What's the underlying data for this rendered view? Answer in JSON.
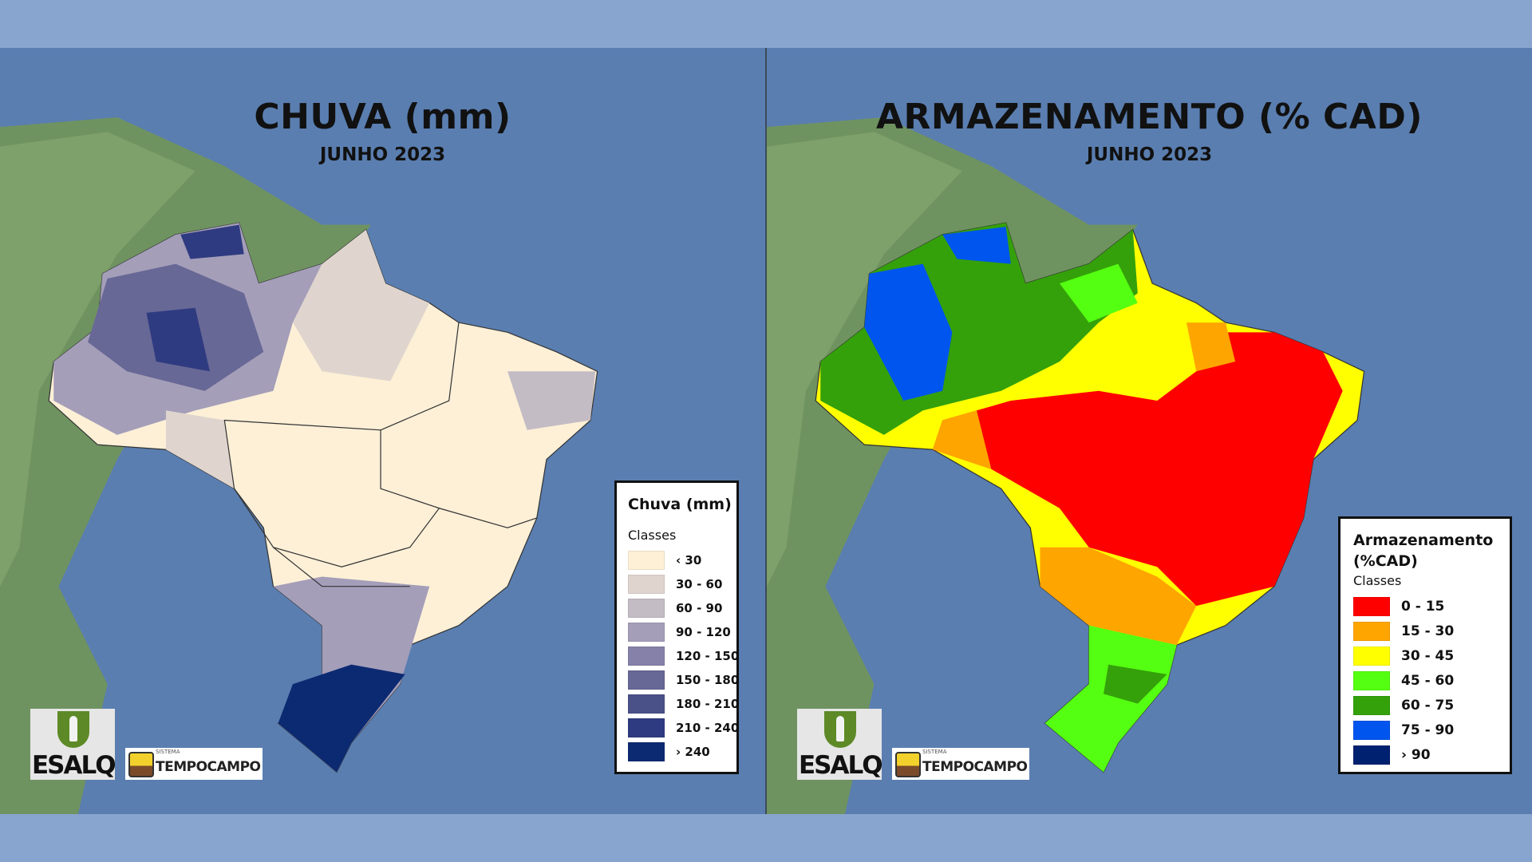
{
  "panels": [
    {
      "title": "CHUVA (mm)",
      "subtitle": "JUNHO 2023",
      "legend": {
        "title": "Chuva (mm)",
        "classes_label": "Classes",
        "classes": [
          {
            "label": "‹ 30",
            "color": "#fdf0d7"
          },
          {
            "label": "30 - 60",
            "color": "#dfd5ce"
          },
          {
            "label": "60 - 90",
            "color": "#c4bcc4"
          },
          {
            "label": "90 - 120",
            "color": "#a49eb9"
          },
          {
            "label": "120 - 150",
            "color": "#8581a8"
          },
          {
            "label": "150 - 180",
            "color": "#686896"
          },
          {
            "label": "180 - 210",
            "color": "#4a5088"
          },
          {
            "label": "210 - 240",
            "color": "#2f3b80"
          },
          {
            "label": "› 240",
            "color": "#0c2a72"
          }
        ]
      }
    },
    {
      "title": "ARMAZENAMENTO (% CAD)",
      "subtitle": "JUNHO 2023",
      "legend": {
        "title": "Armazenamento (%CAD)",
        "classes_label": "Classes",
        "classes": [
          {
            "label": "0 - 15",
            "color": "#ff0000"
          },
          {
            "label": "15 - 30",
            "color": "#ffa500"
          },
          {
            "label": "30 - 45",
            "color": "#ffff00"
          },
          {
            "label": "45 - 60",
            "color": "#55ff11"
          },
          {
            "label": "60 - 75",
            "color": "#34a10a"
          },
          {
            "label": "75 - 90",
            "color": "#0055ee"
          },
          {
            "label": "› 90",
            "color": "#002070"
          }
        ]
      }
    }
  ],
  "logos": {
    "esalq": "ESALQ",
    "tempocampo_small": "SISTEMA",
    "tempocampo": "TEMPOCAMPO"
  }
}
